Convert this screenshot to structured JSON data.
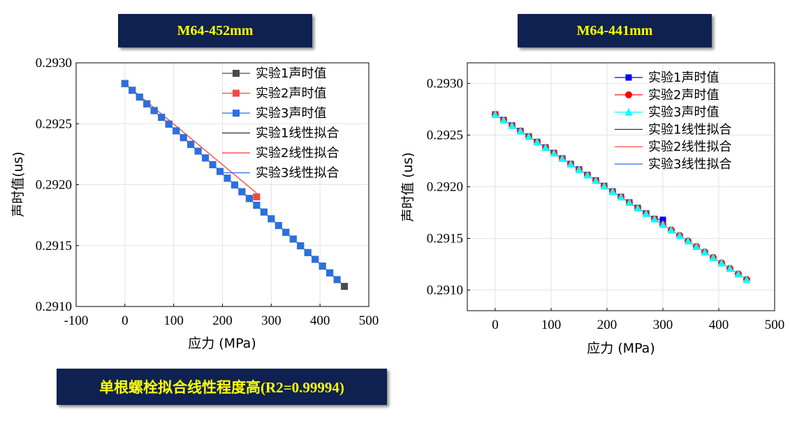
{
  "banners": {
    "left": "M64-452mm",
    "right": "M64-441mm",
    "bottom": "单根螺栓拟合线性程度高(R2=0.99994)"
  },
  "colors": {
    "banner_bg": "#0f2150",
    "banner_text": "#ffff00",
    "exp1": "#4a4a4a",
    "exp2": "#f04848",
    "exp3": "#2a70e0",
    "fit1": "#333333",
    "fit2": "#ff3333",
    "fit3": "#2a6af0",
    "right_exp1": "#0000ff",
    "right_exp2": "#ff0000",
    "right_exp3": "#00ffff"
  },
  "chart_data": [
    {
      "type": "line",
      "title": "M64-452mm",
      "xlabel": "应力 (MPa)",
      "ylabel": "声时值(us)",
      "xlim": [
        -100,
        500
      ],
      "ylim": [
        0.291,
        0.293
      ],
      "xticks": [
        -100,
        0,
        100,
        200,
        300,
        400,
        500
      ],
      "yticks": [
        0.291,
        0.2915,
        0.292,
        0.2925,
        0.293
      ],
      "grid": true,
      "legend_position": "top-right",
      "legend": [
        "实验1声时值",
        "实验2声时值",
        "实验3声时值",
        "实验1线性拟合",
        "实验2线性拟合",
        "实验3线性拟合"
      ],
      "series": [
        {
          "name": "实验1声时值",
          "marker": "square",
          "x_start": 0,
          "x_end": 450,
          "x_step": 15,
          "y_start": 0.29283,
          "slope": -3.7e-06
        },
        {
          "name": "实验2声时值",
          "marker": "square",
          "x_start": 0,
          "x_end": 270,
          "x_step": 15,
          "y_start": 0.29283,
          "slope": -3.7e-06,
          "last_point": [
            270,
            0.2919
          ]
        },
        {
          "name": "实验3声时值",
          "marker": "square",
          "x_start": 0,
          "x_end": 435,
          "x_step": 15,
          "y_start": 0.29283,
          "slope": -3.7e-06
        },
        {
          "name": "实验1线性拟合",
          "fit": true,
          "x": [
            0,
            450
          ],
          "y": [
            0.29283,
            0.291165
          ]
        },
        {
          "name": "实验2线性拟合",
          "fit": true,
          "x": [
            0,
            270
          ],
          "y": [
            0.29283,
            0.291931
          ]
        },
        {
          "name": "实验3线性拟合",
          "fit": true,
          "x": [
            0,
            435
          ],
          "y": [
            0.29283,
            0.29122
          ]
        }
      ]
    },
    {
      "type": "line",
      "title": "M64-441mm",
      "xlabel": "应力 (MPa)",
      "ylabel": "声时值 (us)",
      "xlim": [
        -50,
        500
      ],
      "ylim": [
        0.2908,
        0.2932
      ],
      "xticks": [
        0,
        100,
        200,
        300,
        400,
        500
      ],
      "yticks": [
        0.291,
        0.2915,
        0.292,
        0.2925,
        0.293
      ],
      "grid": true,
      "legend_position": "top-right",
      "legend": [
        "实验1声时值",
        "实验2声时值",
        "实验3声时值",
        "实验1线性拟合",
        "实验2线性拟合",
        "实验3线性拟合"
      ],
      "series": [
        {
          "name": "实验1声时值",
          "marker": "square",
          "x_start": 0,
          "x_end": 300,
          "x_step": 15,
          "y_start": 0.2927,
          "slope": -3.55e-06,
          "last_point": [
            300,
            0.29168
          ]
        },
        {
          "name": "实验2声时值",
          "marker": "circle",
          "x_start": 0,
          "x_end": 450,
          "x_step": 15,
          "y_start": 0.2927,
          "slope": -3.55e-06
        },
        {
          "name": "实验3声时值",
          "marker": "triangle",
          "x_start": 0,
          "x_end": 450,
          "x_step": 15,
          "y_start": 0.2927,
          "slope": -3.55e-06
        },
        {
          "name": "实验1线性拟合",
          "fit": true,
          "x": [
            0,
            300
          ],
          "y": [
            0.2927,
            0.291635
          ]
        },
        {
          "name": "实验2线性拟合",
          "fit": true,
          "x": [
            0,
            450
          ],
          "y": [
            0.2927,
            0.2911025
          ]
        },
        {
          "name": "实验3线性拟合",
          "fit": true,
          "x": [
            0,
            450
          ],
          "y": [
            0.2927,
            0.2911025
          ]
        }
      ]
    }
  ]
}
